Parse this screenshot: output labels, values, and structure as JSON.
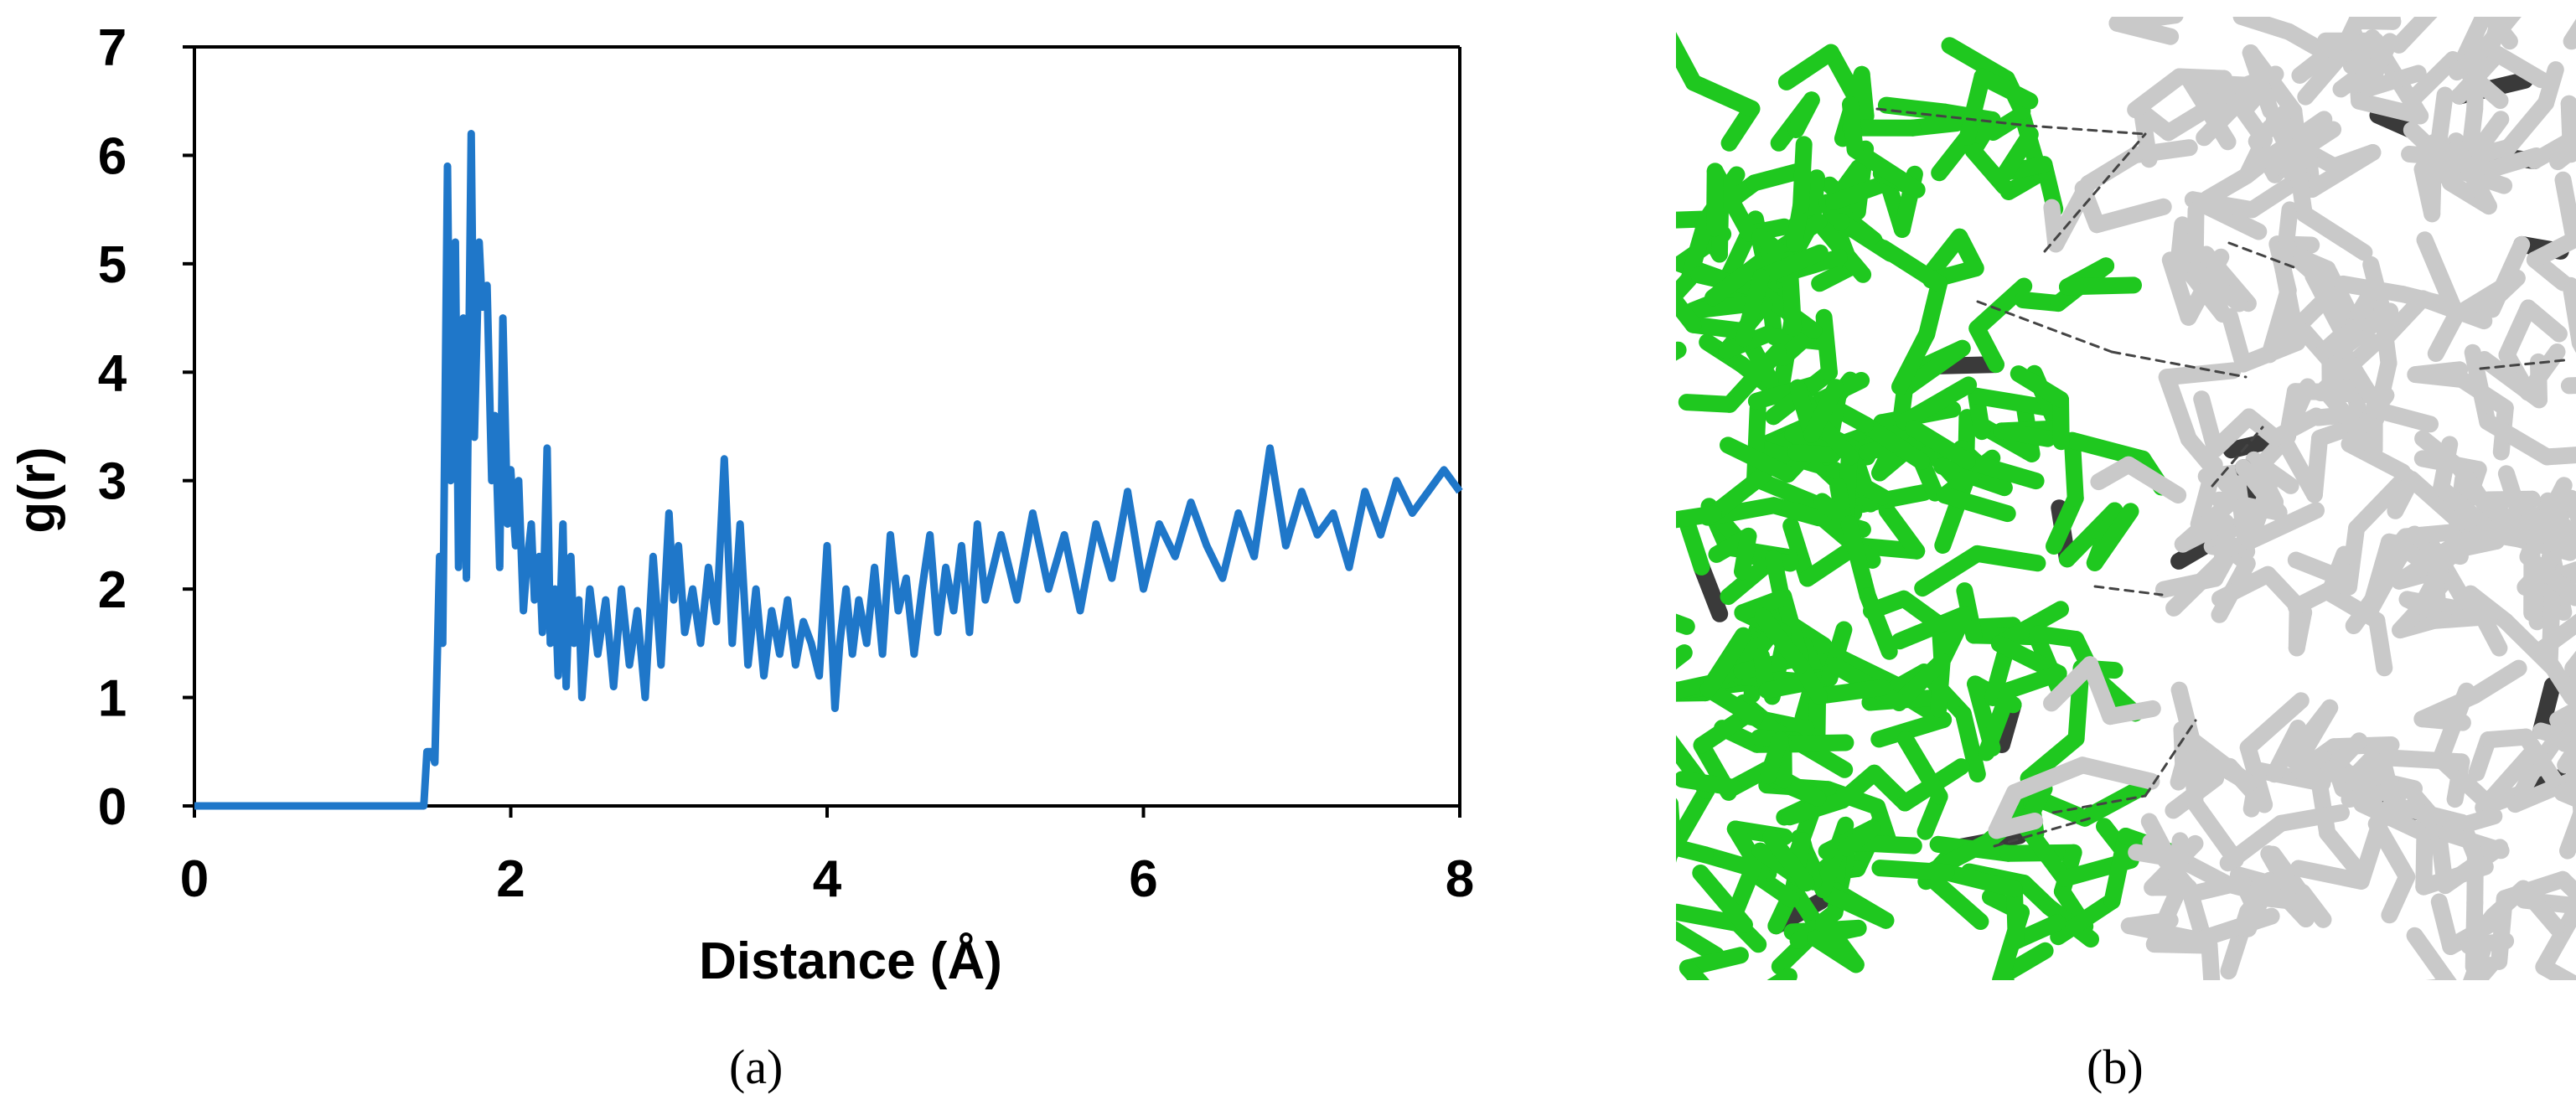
{
  "panels": {
    "a_label": "(a)",
    "b_label": "(b)"
  },
  "colors": {
    "line": "#1f77c9",
    "axis": "#000000",
    "green": "#1fc81f",
    "gray": "#c4c4c4",
    "dark": "#3a3a3a"
  },
  "chart_data": {
    "type": "line",
    "title": "",
    "xlabel": "Distance (Å)",
    "ylabel": "g(r)",
    "xlim": [
      0,
      8
    ],
    "ylim": [
      0,
      7
    ],
    "xticks": [
      "0",
      "2",
      "4",
      "6",
      "8"
    ],
    "yticks": [
      "0",
      "1",
      "2",
      "3",
      "4",
      "5",
      "6",
      "7"
    ],
    "grid": false,
    "legend": "none",
    "series": [
      {
        "x": [
          0,
          1.45,
          1.47,
          1.5,
          1.52,
          1.55,
          1.57,
          1.6,
          1.62,
          1.65,
          1.67,
          1.7,
          1.72,
          1.75,
          1.77,
          1.8,
          1.82,
          1.85,
          1.88,
          1.9,
          1.93,
          1.95,
          1.98,
          2.0,
          2.03,
          2.05,
          2.08,
          2.1,
          2.13,
          2.15,
          2.18,
          2.2,
          2.23,
          2.25,
          2.28,
          2.3,
          2.33,
          2.35,
          2.38,
          2.4,
          2.43,
          2.45,
          2.48,
          2.5,
          2.55,
          2.6,
          2.65,
          2.7,
          2.75,
          2.8,
          2.85,
          2.9,
          2.95,
          3.0,
          3.03,
          3.06,
          3.1,
          3.15,
          3.2,
          3.25,
          3.3,
          3.35,
          3.4,
          3.45,
          3.5,
          3.55,
          3.6,
          3.65,
          3.7,
          3.75,
          3.8,
          3.85,
          3.9,
          3.95,
          4.0,
          4.05,
          4.08,
          4.12,
          4.16,
          4.2,
          4.25,
          4.3,
          4.35,
          4.4,
          4.45,
          4.5,
          4.55,
          4.6,
          4.65,
          4.7,
          4.75,
          4.8,
          4.85,
          4.9,
          4.95,
          5.0,
          5.1,
          5.2,
          5.3,
          5.4,
          5.5,
          5.6,
          5.7,
          5.8,
          5.9,
          6.0,
          6.1,
          6.2,
          6.3,
          6.4,
          6.5,
          6.6,
          6.7,
          6.8,
          6.9,
          7.0,
          7.1,
          7.2,
          7.3,
          7.4,
          7.5,
          7.6,
          7.7,
          7.8,
          7.9,
          8.0
        ],
        "y": [
          0,
          0,
          0.5,
          0.5,
          0.4,
          2.3,
          1.5,
          5.9,
          3.0,
          5.2,
          2.2,
          4.5,
          2.1,
          6.2,
          3.4,
          5.2,
          4.6,
          4.8,
          3.0,
          3.6,
          2.2,
          4.5,
          2.6,
          3.1,
          2.4,
          3.0,
          1.8,
          2.2,
          2.6,
          1.9,
          2.3,
          1.6,
          3.3,
          1.5,
          2.0,
          1.2,
          2.6,
          1.1,
          2.3,
          1.5,
          1.9,
          1.0,
          1.6,
          2.0,
          1.4,
          1.9,
          1.1,
          2.0,
          1.3,
          1.8,
          1.0,
          2.3,
          1.3,
          2.7,
          1.9,
          2.4,
          1.6,
          2.0,
          1.5,
          2.2,
          1.7,
          3.2,
          1.5,
          2.6,
          1.3,
          2.0,
          1.2,
          1.8,
          1.4,
          1.9,
          1.3,
          1.7,
          1.5,
          1.2,
          2.4,
          0.9,
          1.5,
          2.0,
          1.4,
          1.9,
          1.5,
          2.2,
          1.4,
          2.5,
          1.8,
          2.1,
          1.4,
          2.0,
          2.5,
          1.6,
          2.2,
          1.8,
          2.4,
          1.6,
          2.6,
          1.9,
          2.5,
          1.9,
          2.7,
          2.0,
          2.5,
          1.8,
          2.6,
          2.1,
          2.9,
          2.0,
          2.6,
          2.3,
          2.8,
          2.4,
          2.1,
          2.7,
          2.3,
          3.3,
          2.4,
          2.9,
          2.5,
          2.7,
          2.2,
          2.9,
          2.5,
          3.0,
          2.7,
          2.9,
          3.1,
          2.9
        ]
      }
    ]
  }
}
